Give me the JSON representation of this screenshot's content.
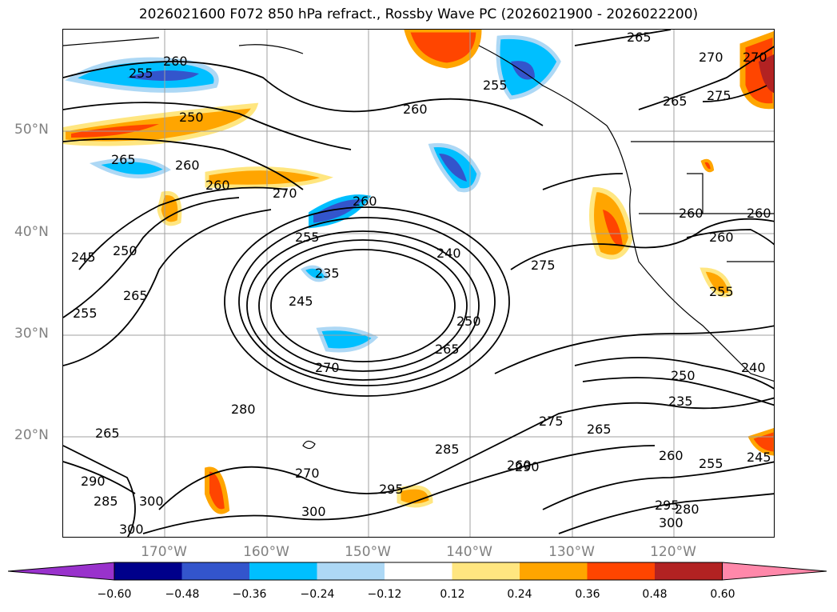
{
  "title": "2026021600 F072 850 hPa refract., Rossby Wave PC (2026021900 - 2026022200)",
  "lat_labels": [
    "50°N",
    "40°N",
    "30°N",
    "20°N"
  ],
  "lon_labels": [
    "170°W",
    "160°W",
    "150°W",
    "140°W",
    "130°W",
    "120°W"
  ],
  "colorbar": {
    "ticks": [
      "−0.60",
      "−0.48",
      "−0.36",
      "−0.24",
      "−0.12",
      "0.12",
      "0.24",
      "0.36",
      "0.48",
      "0.60"
    ],
    "colors": [
      "#9932cc",
      "#00008b",
      "#3355cc",
      "#00bfff",
      "#add8f5",
      "#ffffff",
      "#ffe680",
      "#ffa500",
      "#ff4500",
      "#b22222",
      "#ff88aa"
    ]
  },
  "contour_labels": [
    "260",
    "255",
    "250",
    "265",
    "260",
    "270",
    "260",
    "255",
    "240",
    "235",
    "245",
    "250",
    "265",
    "270",
    "260",
    "255",
    "260",
    "250",
    "245",
    "255",
    "265",
    "275",
    "260",
    "260",
    "280",
    "270",
    "300",
    "290",
    "285",
    "295",
    "300",
    "285",
    "290",
    "275",
    "265",
    "260",
    "255",
    "250",
    "235",
    "300",
    "295",
    "280",
    "265",
    "275",
    "270",
    "245",
    "240",
    "300",
    "265",
    "255",
    "260",
    "265",
    "260",
    "270"
  ],
  "map": {
    "lat_range": [
      10,
      60
    ],
    "lon_range": [
      -180,
      -110
    ],
    "feature": "850 hPa refractivity contours with Rossby wave PC shading"
  }
}
